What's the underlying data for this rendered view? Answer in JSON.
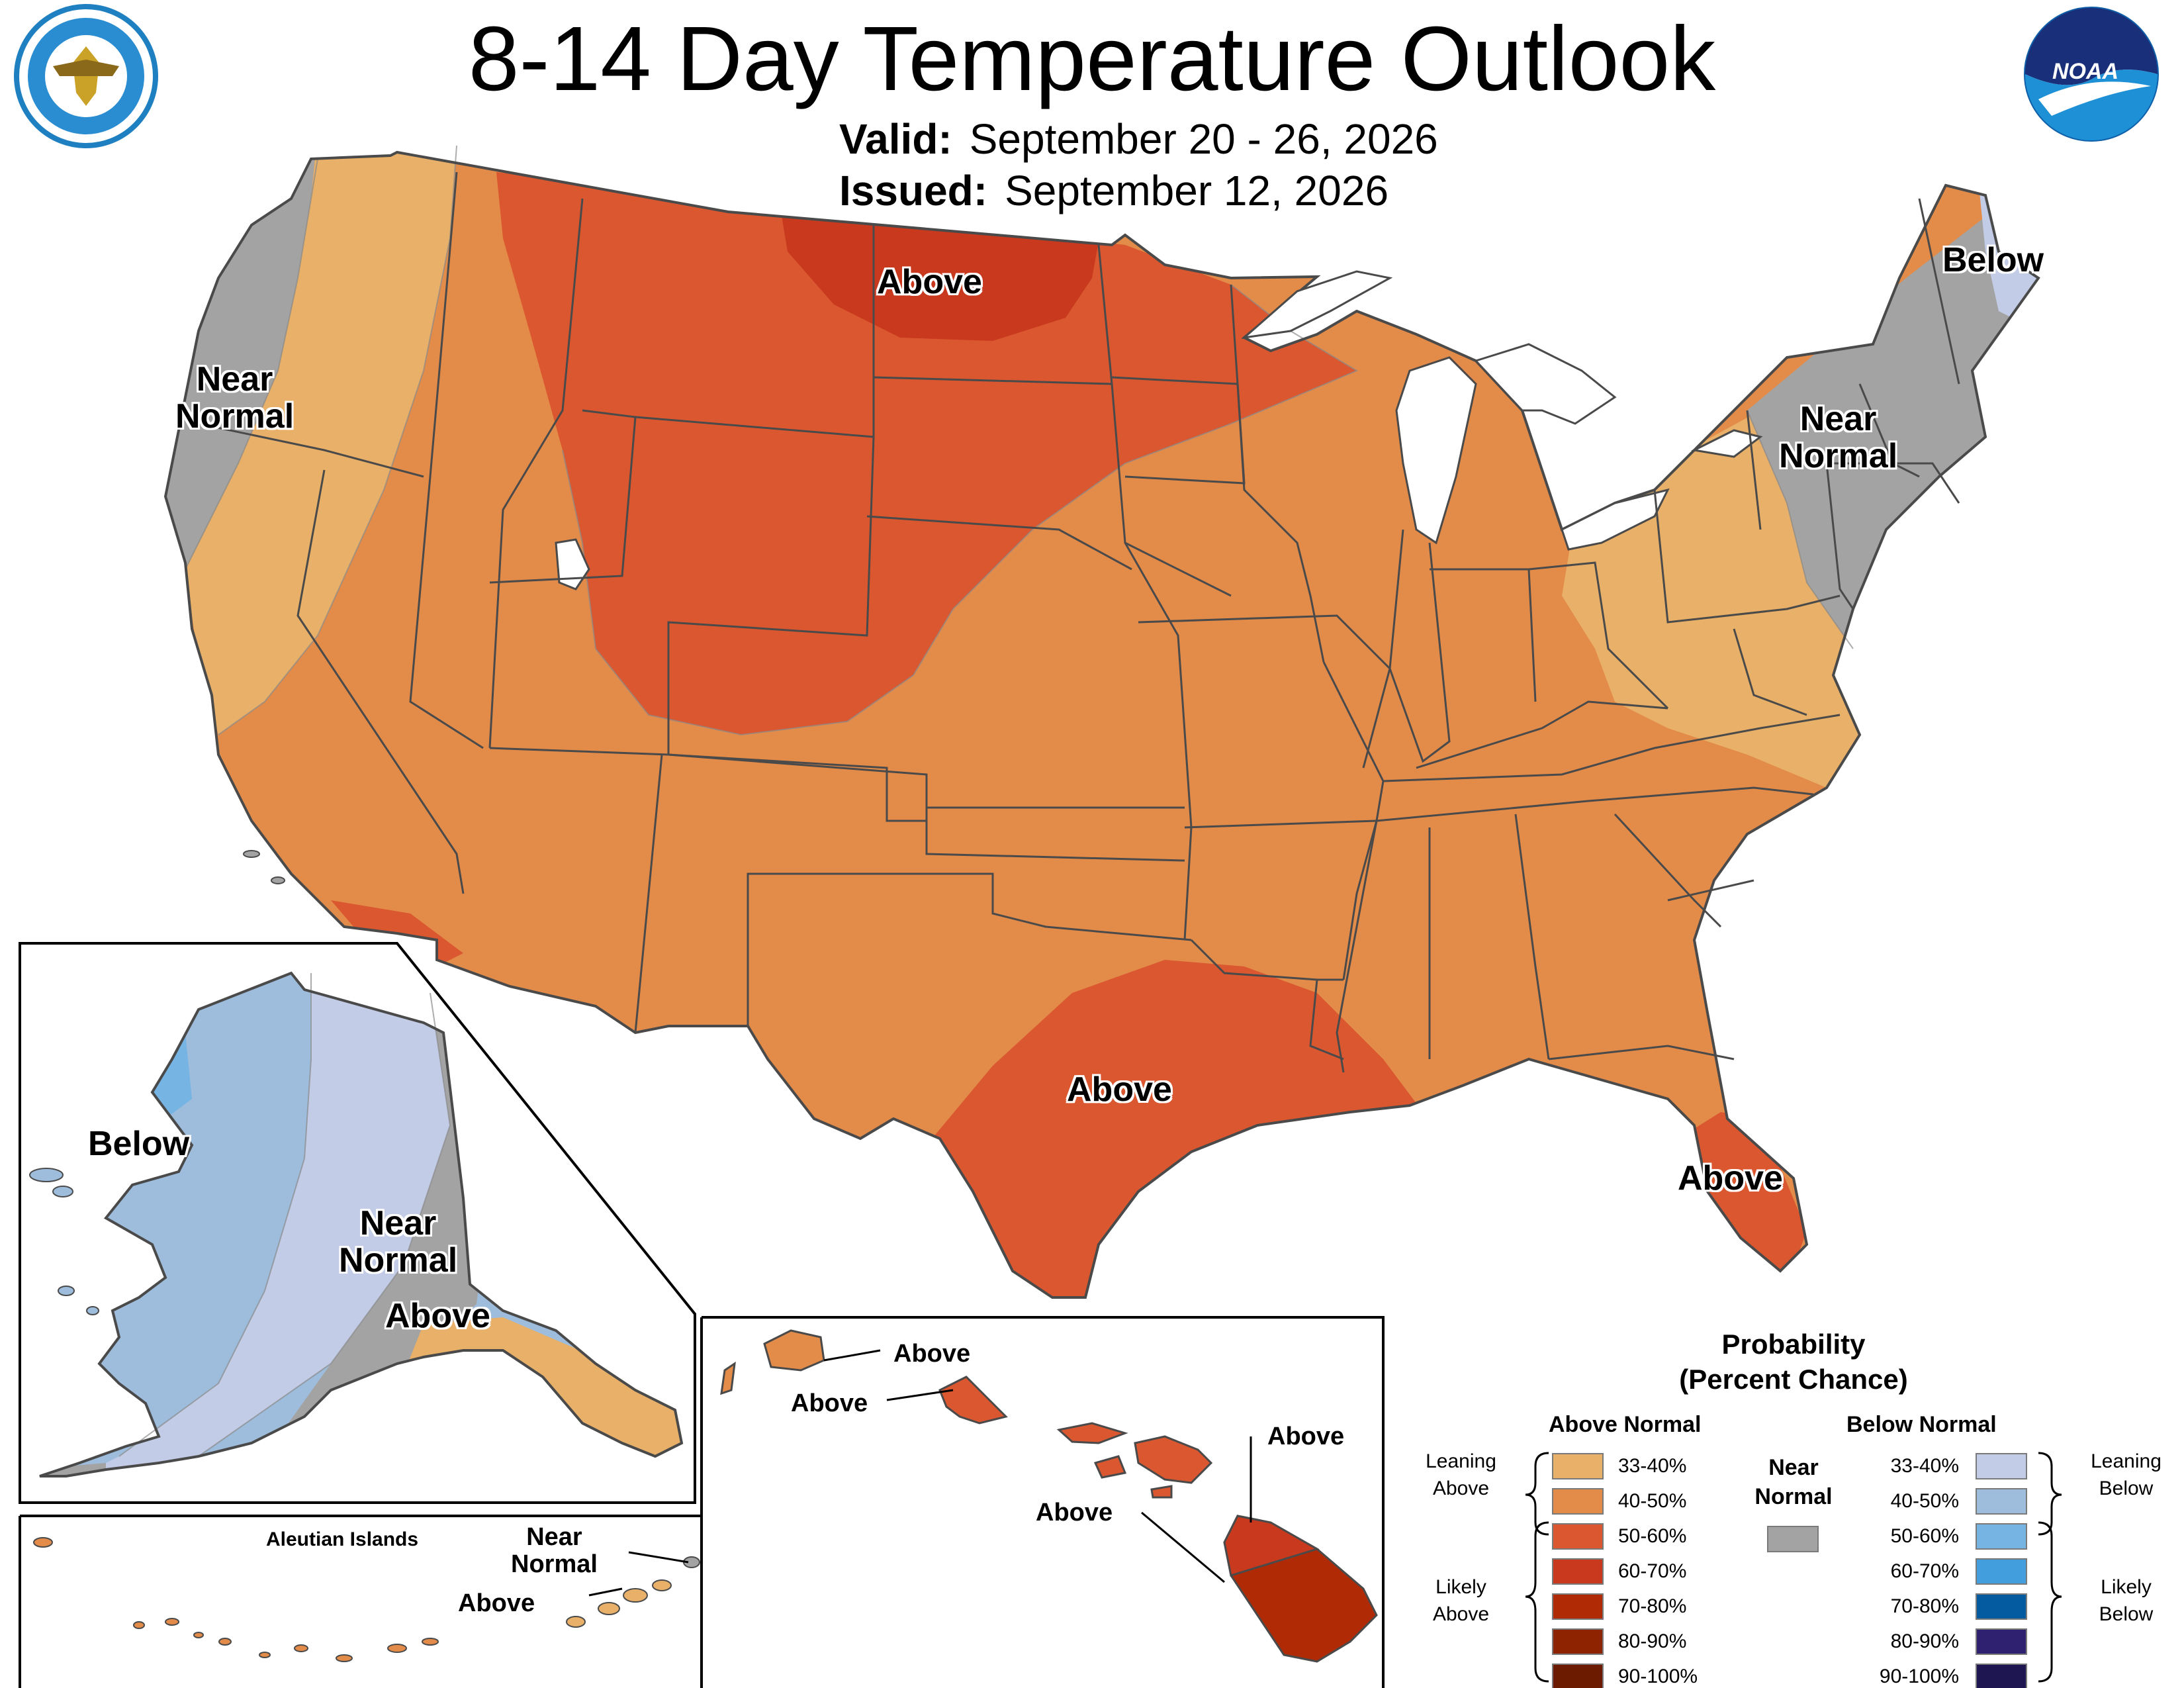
{
  "title": "8-14 Day Temperature Outlook",
  "valid": {
    "label": "Valid:",
    "dates": "September 20 - 26, 2026"
  },
  "issued": {
    "label": "Issued:",
    "date": "September 12, 2026"
  },
  "logos": {
    "left": "department-of-commerce-seal",
    "right": "noaa-logo",
    "noaa_text": "NOAA"
  },
  "map_labels": {
    "conus_above_north": "Above",
    "conus_near_normal_west": [
      "Near",
      "Normal"
    ],
    "conus_below_northeast": "Below",
    "conus_near_normal_east": [
      "Near",
      "Normal"
    ],
    "conus_above_texas": "Above",
    "conus_above_florida": "Above",
    "alaska_below": "Below",
    "alaska_near_normal": [
      "Near",
      "Normal"
    ],
    "alaska_above": "Above",
    "aleutian_title": "Aleutian Islands",
    "aleutian_near_normal": [
      "Near",
      "Normal"
    ],
    "aleutian_above": "Above",
    "hawaii_kauai": "Above",
    "hawaii_oahu": "Above",
    "hawaii_maui": "Above",
    "hawaii_big_island": "Above"
  },
  "legend": {
    "title": [
      "Probability",
      "(Percent Chance)"
    ],
    "above_header": "Above Normal",
    "below_header": "Below Normal",
    "near_normal": [
      "Near",
      "Normal"
    ],
    "leaning_above": [
      "Leaning",
      "Above"
    ],
    "likely_above": [
      "Likely",
      "Above"
    ],
    "leaning_below": [
      "Leaning",
      "Below"
    ],
    "likely_below": [
      "Likely",
      "Below"
    ],
    "above": [
      {
        "range": "33-40%",
        "color": "#E8B068"
      },
      {
        "range": "40-50%",
        "color": "#E38B49"
      },
      {
        "range": "50-60%",
        "color": "#DA5730"
      },
      {
        "range": "60-70%",
        "color": "#C9391E"
      },
      {
        "range": "70-80%",
        "color": "#B12A06"
      },
      {
        "range": "80-90%",
        "color": "#8E2302"
      },
      {
        "range": "90-100%",
        "color": "#6C1A00"
      }
    ],
    "below": [
      {
        "range": "33-40%",
        "color": "#C3CCE6"
      },
      {
        "range": "40-50%",
        "color": "#9EBDDD"
      },
      {
        "range": "50-60%",
        "color": "#76B4E3"
      },
      {
        "range": "60-70%",
        "color": "#439EDE"
      },
      {
        "range": "70-80%",
        "color": "#045B9F"
      },
      {
        "range": "80-90%",
        "color": "#2F2070"
      },
      {
        "range": "90-100%",
        "color": "#1E1650"
      }
    ],
    "near_color": "#A3A3A3"
  }
}
